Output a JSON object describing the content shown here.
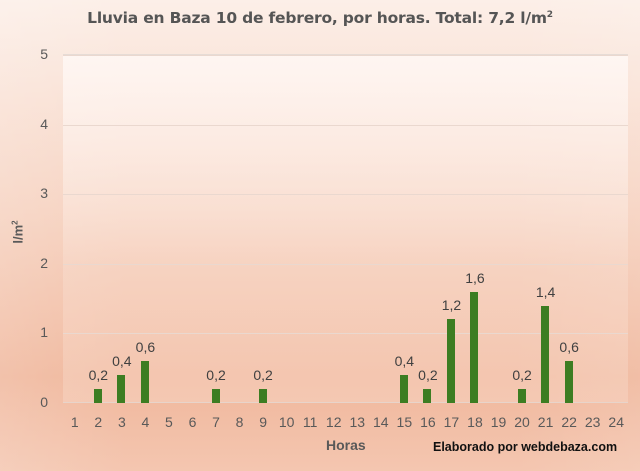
{
  "chart_data": {
    "type": "bar",
    "title": "Lluvia en Baza 10 de febrero, por horas. Total: 7,2 l/m",
    "title_superscript": "2",
    "xlabel": "Horas",
    "ylabel": "l/m",
    "ylabel_superscript": "2",
    "ylim": [
      0,
      5
    ],
    "yticks": [
      "0",
      "1",
      "2",
      "3",
      "4",
      "5"
    ],
    "grid": true,
    "legend": null,
    "categories": [
      "1",
      "2",
      "3",
      "4",
      "5",
      "6",
      "7",
      "8",
      "9",
      "10",
      "11",
      "12",
      "13",
      "14",
      "15",
      "16",
      "17",
      "18",
      "19",
      "20",
      "21",
      "22",
      "23",
      "24"
    ],
    "values": [
      0,
      0.2,
      0.4,
      0.6,
      0,
      0,
      0.2,
      0,
      0.2,
      0,
      0,
      0,
      0,
      0,
      0.4,
      0.2,
      1.2,
      1.6,
      0,
      0.2,
      1.4,
      0.6,
      0,
      0
    ],
    "data_labels": [
      "",
      "0,2",
      "0,4",
      "0,6",
      "",
      "",
      "0,2",
      "",
      "0,2",
      "",
      "",
      "",
      "",
      "",
      "0,4",
      "0,2",
      "1,2",
      "1,6",
      "",
      "0,2",
      "1,4",
      "0,6",
      "",
      ""
    ],
    "bar_color": "#3c7d22",
    "annotation": "Elaborado por webdebaza.com"
  }
}
